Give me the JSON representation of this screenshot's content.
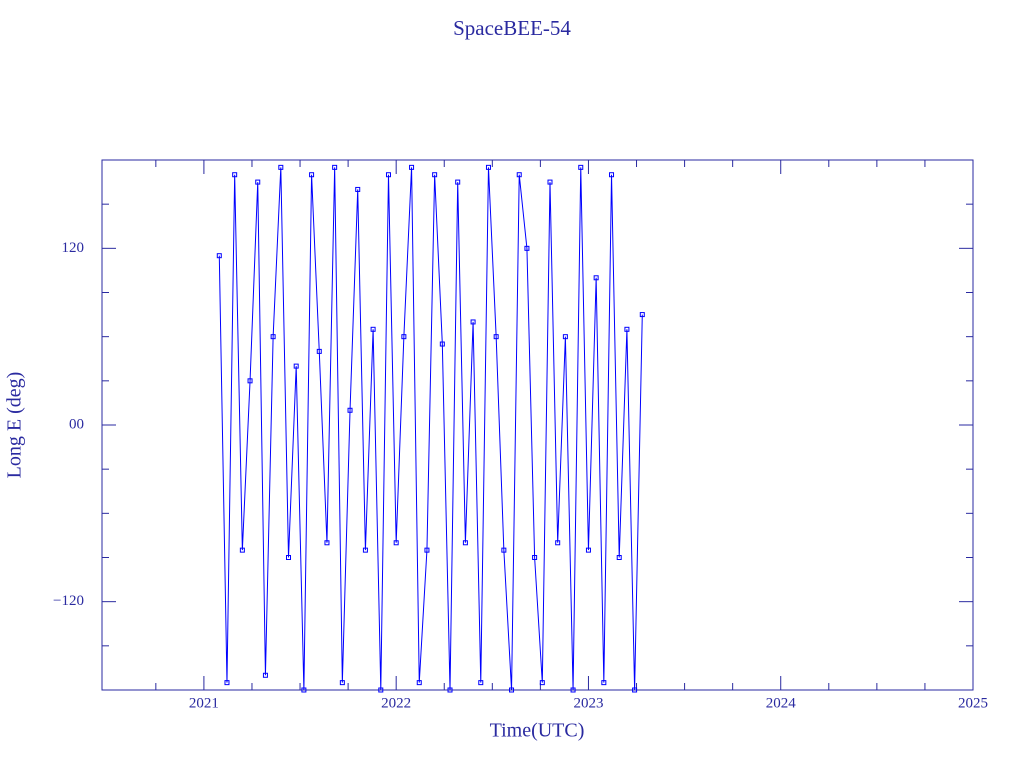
{
  "chart_data": {
    "type": "line",
    "title": "SpaceBEE-54",
    "xlabel": "Time(UTC)",
    "ylabel": "Long E (deg)",
    "x": [
      2021.08,
      2021.12,
      2021.16,
      2021.2,
      2021.24,
      2021.28,
      2021.32,
      2021.36,
      2021.4,
      2021.44,
      2021.48,
      2021.52,
      2021.56,
      2021.6,
      2021.64,
      2021.68,
      2021.72,
      2021.76,
      2021.8,
      2021.84,
      2021.88,
      2021.92,
      2021.96,
      2022.0,
      2022.04,
      2022.08,
      2022.12,
      2022.16,
      2022.2,
      2022.24,
      2022.28,
      2022.32,
      2022.36,
      2022.4,
      2022.44,
      2022.48,
      2022.52,
      2022.56,
      2022.6,
      2022.64,
      2022.68,
      2022.72,
      2022.76,
      2022.8,
      2022.84,
      2022.88,
      2022.92,
      2022.96,
      2023.0,
      2023.04,
      2023.08,
      2023.12,
      2023.16,
      2023.2,
      2023.24,
      2023.28
    ],
    "series": [
      {
        "color": "#0000ff",
        "values": [
          115,
          -175,
          170,
          -85,
          30,
          165,
          -170,
          60,
          175,
          -90,
          40,
          -180,
          170,
          50,
          -80,
          175,
          -175,
          10,
          160,
          -85,
          65,
          -180,
          170,
          -80,
          60,
          175,
          -175,
          -85,
          170,
          55,
          -180,
          165,
          -80,
          70,
          -175,
          175,
          60,
          -85,
          -180,
          170,
          120,
          -90,
          -175,
          165,
          -80,
          60,
          -180,
          175,
          -85,
          100,
          -175,
          170,
          -90,
          65,
          -180,
          75
        ]
      }
    ],
    "xlim": [
      2020.47,
      2025
    ],
    "xticks": [
      2021,
      2022,
      2023,
      2024,
      2025
    ],
    "xminorticks": [
      2020.75,
      2021.25,
      2021.5,
      2021.75,
      2022.25,
      2022.5,
      2022.75,
      2023.25,
      2023.5,
      2023.75,
      2024.25,
      2024.5,
      2024.75
    ],
    "ylim": [
      -180,
      180
    ],
    "yticks": [
      {
        "value": -120,
        "label": "−120"
      },
      {
        "value": 0,
        "label": "00"
      },
      120
    ],
    "yminorticks": [
      -150,
      -90,
      -60,
      -30,
      30,
      60,
      90,
      150
    ],
    "axis_color": "#2a2aa0"
  }
}
